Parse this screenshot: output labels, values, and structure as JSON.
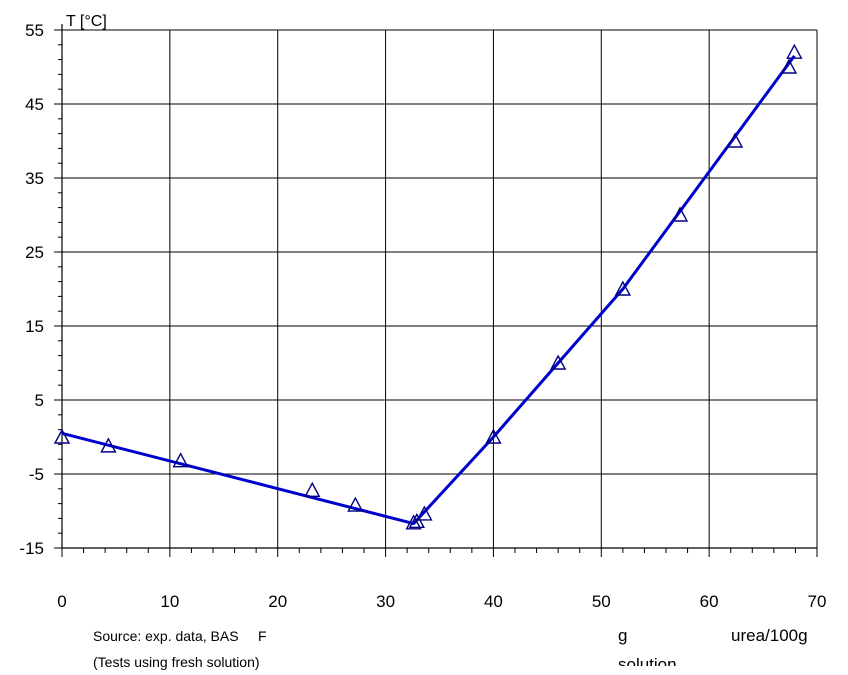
{
  "chart_data": {
    "type": "scatter",
    "ylabel": "T [°C]",
    "xlabel_parts": [
      "g",
      "urea/100g",
      "solution"
    ],
    "xlim": [
      0,
      70
    ],
    "ylim": [
      -15,
      55
    ],
    "xticks": [
      0,
      10,
      20,
      30,
      40,
      50,
      60,
      70
    ],
    "yticks": [
      -15,
      -5,
      5,
      15,
      25,
      35,
      45,
      55
    ],
    "grid": true,
    "series": [
      {
        "kind": "points",
        "marker": "triangle",
        "color": "#000080",
        "x": [
          0,
          4.3,
          11,
          23.2,
          27.2,
          32.6,
          32.9,
          33.6,
          40,
          46,
          52,
          57.3,
          62.4,
          67.4,
          67.9
        ],
        "y": [
          0,
          -1.2,
          -3.2,
          -7.2,
          -9.2,
          -11.6,
          -11.4,
          -10.4,
          0,
          10,
          20,
          30,
          40,
          50,
          52
        ]
      },
      {
        "kind": "line",
        "color": "#0000cc",
        "x": [
          0,
          32.6,
          40,
          52,
          67.9
        ],
        "y": [
          0.5,
          -11.7,
          0,
          20,
          51.5
        ]
      }
    ]
  },
  "notes": {
    "source": "Source: exp. data, BAS     F",
    "tests": "(Tests using fresh solution)"
  }
}
